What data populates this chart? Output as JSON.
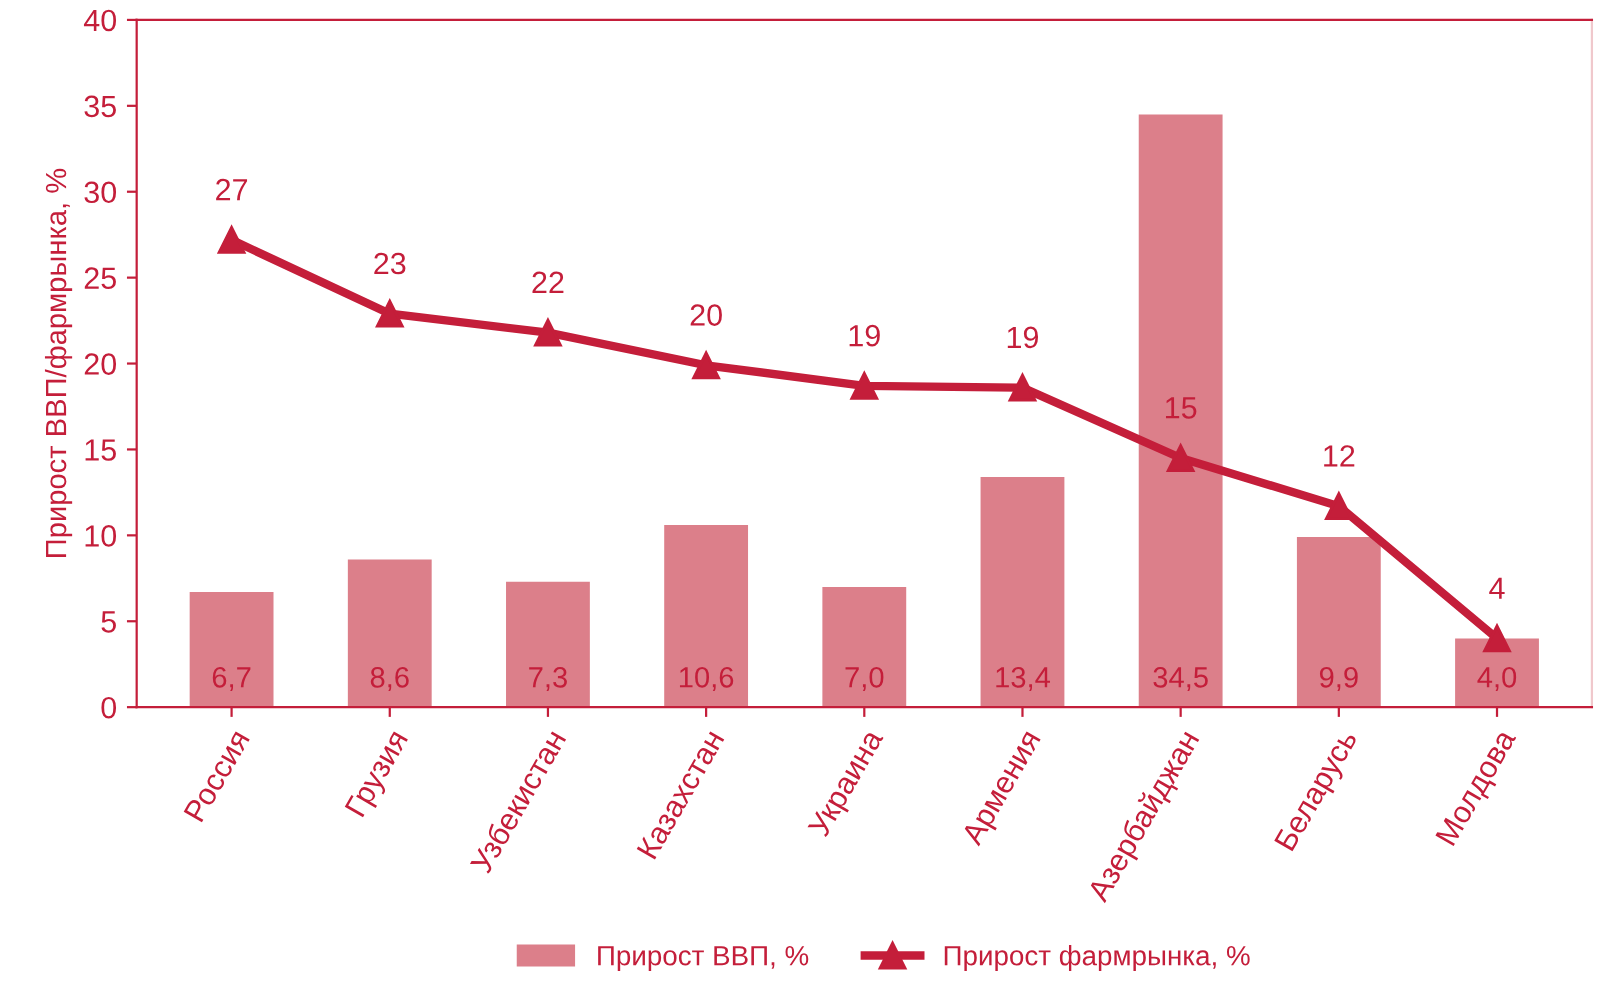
{
  "chart_data": {
    "type": "bar",
    "ylabel": "Прирост ВВП/фармрынка, %",
    "categories": [
      "Россия",
      "Грузия",
      "Узбекистан",
      "Казахстан",
      "Украина",
      "Армения",
      "Азербайджан",
      "Беларусь",
      "Молдова"
    ],
    "series": [
      {
        "name": "Прирост ВВП, %",
        "color": "#dc7f8a",
        "values": [
          6.7,
          8.6,
          7.3,
          10.6,
          7.0,
          13.4,
          34.5,
          9.9,
          4.0
        ],
        "value_labels": [
          "6,7",
          "8,6",
          "7,3",
          "10,6",
          "7,0",
          "13,4",
          "34,5",
          "9,9",
          "4,0"
        ]
      },
      {
        "name": "Прирост фармрынка, %",
        "type": "line",
        "color": "#c41e3a",
        "marker": "triangle",
        "values": [
          27.2,
          22.9,
          21.8,
          19.9,
          18.7,
          18.6,
          14.5,
          11.7,
          4.0
        ],
        "value_labels": [
          "27",
          "23",
          "22",
          "20",
          "19",
          "19",
          "15",
          "12",
          "4"
        ]
      }
    ],
    "ylim": [
      0,
      40
    ],
    "yticks": [
      0,
      5,
      10,
      15,
      20,
      25,
      30,
      35,
      40
    ],
    "grid": false,
    "legend": "bottom"
  }
}
